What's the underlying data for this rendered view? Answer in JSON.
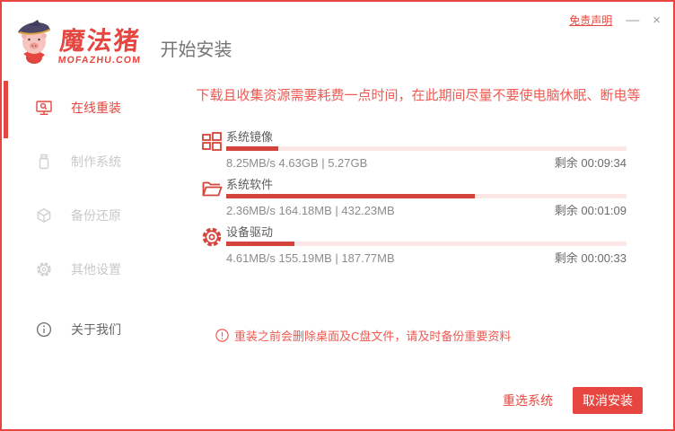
{
  "window": {
    "disclaimer": "免责声明",
    "minimize": "—",
    "close": "×"
  },
  "brand": {
    "name": "魔法猪",
    "domain": "MOFAZHU.COM"
  },
  "header": {
    "title": "开始安装"
  },
  "sidebar": {
    "items": [
      {
        "label": "在线重装",
        "active": true
      },
      {
        "label": "制作系统",
        "active": false
      },
      {
        "label": "备份还原",
        "active": false
      },
      {
        "label": "其他设置",
        "active": false
      },
      {
        "label": "关于我们",
        "active": false
      }
    ]
  },
  "main": {
    "banner": "下载且收集资源需要耗费一点时间，在此期间尽量不要使电脑休眠、断电等",
    "tasks": [
      {
        "name": "系统镜像",
        "stats": "8.25MB/s 4.63GB | 5.27GB",
        "remaining": "剩余 00:09:34",
        "progress": 13
      },
      {
        "name": "系统软件",
        "stats": "2.36MB/s 164.18MB | 432.23MB",
        "remaining": "剩余 00:01:09",
        "progress": 62
      },
      {
        "name": "设备驱动",
        "stats": "4.61MB/s 155.19MB | 187.77MB",
        "remaining": "剩余 00:00:33",
        "progress": 17
      }
    ],
    "warning": "重装之前会删除桌面及C盘文件，请及时备份重要资料",
    "footer": {
      "reselect_label": "重选系统",
      "cancel_label": "取消安装"
    }
  },
  "colors": {
    "accent": "#e6463f",
    "progress_fill": "#d5443b",
    "progress_track": "#fbe8e6",
    "banner_text": "#ee5a52",
    "disabled_text": "#c9c9c9"
  }
}
